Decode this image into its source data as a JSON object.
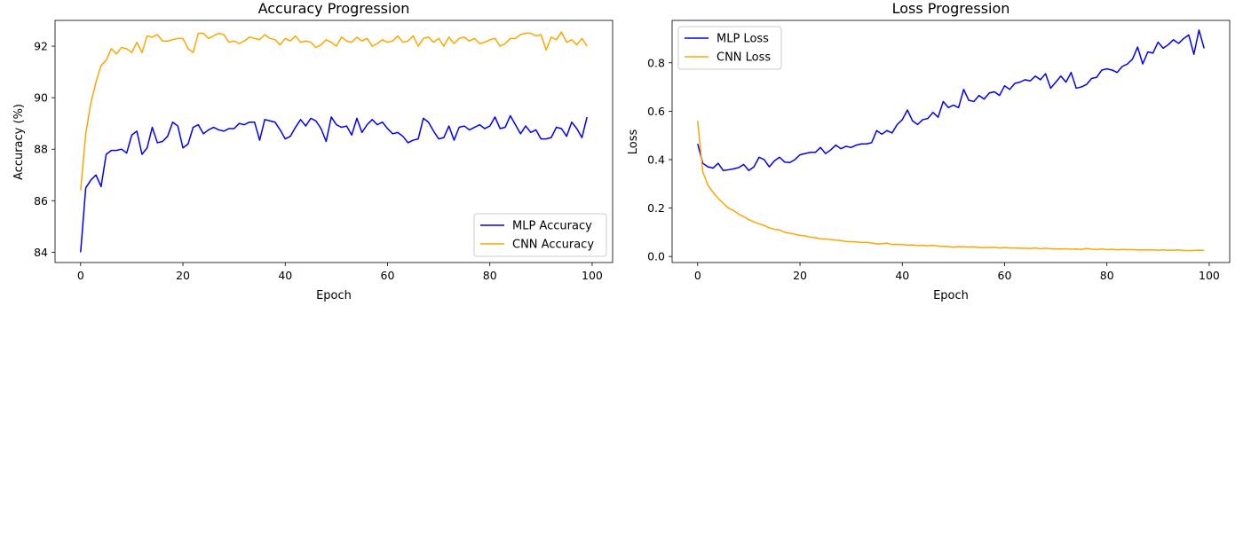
{
  "chart_data": [
    {
      "type": "line",
      "title": "Accuracy Progression",
      "xlabel": "Epoch",
      "ylabel": "Accuracy (%)",
      "xlim": [
        -5,
        104
      ],
      "ylim": [
        83.6,
        93.0
      ],
      "xticks": [
        0,
        20,
        40,
        60,
        80,
        100
      ],
      "yticks": [
        84,
        86,
        88,
        90,
        92
      ],
      "legend_position": "lower-right",
      "grid": false,
      "series": [
        {
          "name": "MLP Accuracy",
          "color": "#0000ff",
          "values": [
            84.0,
            86.5,
            86.8,
            87.0,
            86.55,
            87.8,
            87.95,
            87.95,
            88.0,
            87.85,
            88.55,
            88.7,
            87.8,
            88.05,
            88.85,
            88.25,
            88.3,
            88.5,
            89.05,
            88.9,
            88.05,
            88.2,
            88.85,
            88.95,
            88.6,
            88.75,
            88.85,
            88.75,
            88.7,
            88.8,
            88.8,
            89.0,
            88.95,
            89.05,
            89.05,
            88.35,
            89.15,
            89.1,
            89.05,
            88.75,
            88.4,
            88.5,
            88.85,
            89.15,
            88.9,
            89.2,
            89.1,
            88.8,
            88.3,
            89.25,
            88.95,
            88.85,
            88.9,
            88.55,
            89.2,
            88.65,
            88.95,
            89.15,
            88.95,
            89.05,
            88.8,
            88.6,
            88.65,
            88.5,
            88.25,
            88.35,
            88.4,
            89.2,
            89.05,
            88.7,
            88.4,
            88.45,
            88.9,
            88.35,
            88.85,
            88.9,
            88.75,
            88.85,
            88.95,
            88.8,
            88.9,
            89.25,
            88.8,
            88.85,
            89.3,
            88.95,
            88.6,
            88.9,
            88.65,
            88.75,
            88.4,
            88.4,
            88.45,
            88.85,
            88.8,
            88.5,
            89.05,
            88.8,
            88.45,
            89.25
          ]
        },
        {
          "name": "CNN Accuracy",
          "color": "#ffa500",
          "values": [
            86.4,
            88.6,
            89.8,
            90.6,
            91.25,
            91.45,
            91.9,
            91.7,
            91.95,
            91.9,
            91.75,
            92.15,
            91.75,
            92.4,
            92.35,
            92.45,
            92.2,
            92.2,
            92.25,
            92.3,
            92.3,
            91.9,
            91.75,
            92.5,
            92.5,
            92.3,
            92.4,
            92.5,
            92.45,
            92.15,
            92.2,
            92.1,
            92.2,
            92.35,
            92.3,
            92.25,
            92.45,
            92.3,
            92.25,
            92.05,
            92.3,
            92.2,
            92.4,
            92.15,
            92.2,
            92.15,
            91.95,
            92.05,
            92.25,
            92.15,
            92.0,
            92.35,
            92.2,
            92.15,
            92.35,
            92.2,
            92.3,
            92.0,
            92.1,
            92.25,
            92.15,
            92.2,
            92.4,
            92.15,
            92.2,
            92.4,
            92.0,
            92.3,
            92.35,
            92.15,
            92.3,
            92.0,
            92.35,
            92.1,
            92.3,
            92.35,
            92.2,
            92.3,
            92.1,
            92.15,
            92.25,
            92.3,
            92.0,
            92.1,
            92.3,
            92.3,
            92.45,
            92.5,
            92.5,
            92.4,
            92.45,
            91.85,
            92.35,
            92.25,
            92.55,
            92.15,
            92.25,
            92.05,
            92.3,
            92.0
          ]
        }
      ]
    },
    {
      "type": "line",
      "title": "Loss Progression",
      "xlabel": "Epoch",
      "ylabel": "Loss",
      "xlim": [
        -5,
        104
      ],
      "ylim": [
        -0.025,
        0.975
      ],
      "xticks": [
        0,
        20,
        40,
        60,
        80,
        100
      ],
      "yticks": [
        0.0,
        0.2,
        0.4,
        0.6,
        0.8
      ],
      "yticklabels": [
        "0.0",
        "0.2",
        "0.4",
        "0.6",
        "0.8"
      ],
      "legend_position": "top-left",
      "grid": false,
      "series": [
        {
          "name": "MLP Loss",
          "color": "#0000ff",
          "values": [
            0.465,
            0.385,
            0.37,
            0.365,
            0.385,
            0.355,
            0.358,
            0.362,
            0.367,
            0.38,
            0.355,
            0.37,
            0.41,
            0.4,
            0.37,
            0.395,
            0.41,
            0.39,
            0.388,
            0.4,
            0.42,
            0.425,
            0.43,
            0.43,
            0.45,
            0.425,
            0.44,
            0.46,
            0.445,
            0.455,
            0.45,
            0.46,
            0.465,
            0.465,
            0.47,
            0.52,
            0.505,
            0.52,
            0.51,
            0.545,
            0.565,
            0.605,
            0.56,
            0.545,
            0.565,
            0.57,
            0.595,
            0.575,
            0.64,
            0.615,
            0.625,
            0.615,
            0.69,
            0.645,
            0.64,
            0.665,
            0.65,
            0.675,
            0.68,
            0.665,
            0.705,
            0.69,
            0.715,
            0.72,
            0.73,
            0.725,
            0.745,
            0.73,
            0.755,
            0.695,
            0.72,
            0.745,
            0.72,
            0.76,
            0.695,
            0.7,
            0.71,
            0.735,
            0.74,
            0.77,
            0.775,
            0.77,
            0.76,
            0.785,
            0.795,
            0.815,
            0.865,
            0.795,
            0.845,
            0.84,
            0.885,
            0.86,
            0.875,
            0.895,
            0.88,
            0.9,
            0.915,
            0.835,
            0.935,
            0.86
          ]
        },
        {
          "name": "CNN Loss",
          "color": "#ffa500",
          "values": [
            0.56,
            0.35,
            0.295,
            0.265,
            0.24,
            0.22,
            0.2,
            0.19,
            0.175,
            0.165,
            0.152,
            0.143,
            0.135,
            0.128,
            0.118,
            0.112,
            0.11,
            0.1,
            0.096,
            0.092,
            0.087,
            0.085,
            0.08,
            0.078,
            0.072,
            0.072,
            0.07,
            0.068,
            0.065,
            0.062,
            0.061,
            0.06,
            0.058,
            0.058,
            0.056,
            0.052,
            0.053,
            0.055,
            0.049,
            0.05,
            0.049,
            0.047,
            0.048,
            0.045,
            0.046,
            0.044,
            0.046,
            0.043,
            0.042,
            0.041,
            0.038,
            0.041,
            0.04,
            0.039,
            0.04,
            0.037,
            0.037,
            0.037,
            0.038,
            0.035,
            0.037,
            0.035,
            0.035,
            0.034,
            0.034,
            0.033,
            0.035,
            0.032,
            0.034,
            0.032,
            0.032,
            0.031,
            0.032,
            0.03,
            0.031,
            0.029,
            0.033,
            0.03,
            0.029,
            0.031,
            0.028,
            0.03,
            0.027,
            0.029,
            0.028,
            0.028,
            0.027,
            0.027,
            0.027,
            0.027,
            0.026,
            0.027,
            0.026,
            0.026,
            0.027,
            0.025,
            0.024,
            0.025,
            0.026,
            0.025
          ]
        }
      ]
    }
  ]
}
